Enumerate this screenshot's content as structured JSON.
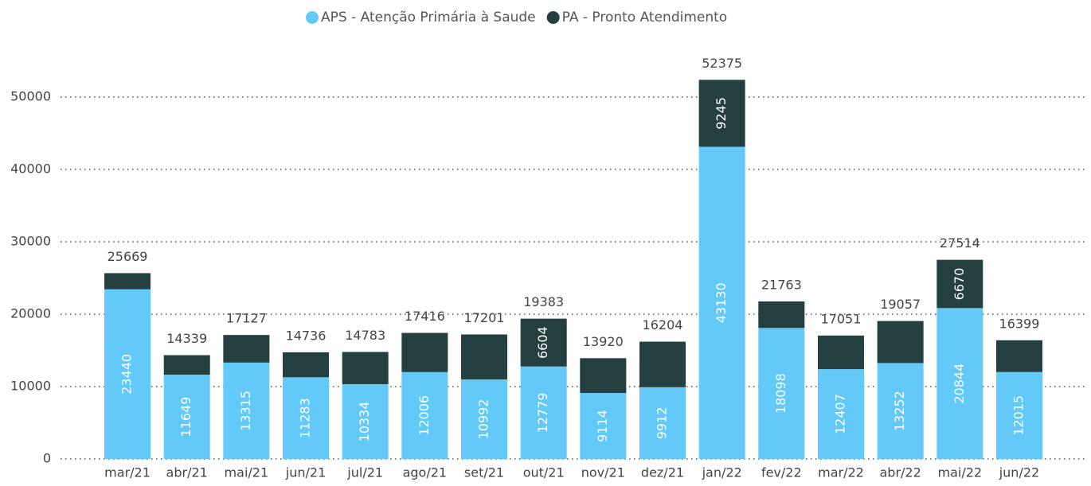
{
  "chart_data": {
    "type": "stacked_bar",
    "categories": [
      "mar/21",
      "abr/21",
      "mai/21",
      "jun/21",
      "jul/21",
      "ago/21",
      "set/21",
      "out/21",
      "nov/21",
      "dez/21",
      "jan/22",
      "fev/22",
      "mar/22",
      "abr/22",
      "mai/22",
      "jun/22"
    ],
    "series": [
      {
        "name": "APS - Atenção Primária à Saude",
        "color": "#62c9f8",
        "values": [
          23440,
          11649,
          13315,
          11283,
          10334,
          12006,
          10992,
          12779,
          9114,
          9912,
          43130,
          18098,
          12407,
          13252,
          20844,
          12015
        ]
      },
      {
        "name": "PA - Pronto Atendimento",
        "color": "#243f40",
        "values": [
          2229,
          2690,
          3812,
          3453,
          4449,
          5410,
          6209,
          6604,
          4806,
          6292,
          9245,
          3665,
          4644,
          5805,
          6670,
          4384
        ]
      }
    ],
    "totals": [
      25669,
      14339,
      17127,
      14736,
      14783,
      17416,
      17201,
      19383,
      13920,
      16204,
      52375,
      21763,
      17051,
      19057,
      27514,
      16399
    ],
    "ylim": [
      0,
      55000
    ],
    "yticks": [
      0,
      10000,
      20000,
      30000,
      40000,
      50000
    ],
    "grid": true,
    "legend": "top"
  }
}
